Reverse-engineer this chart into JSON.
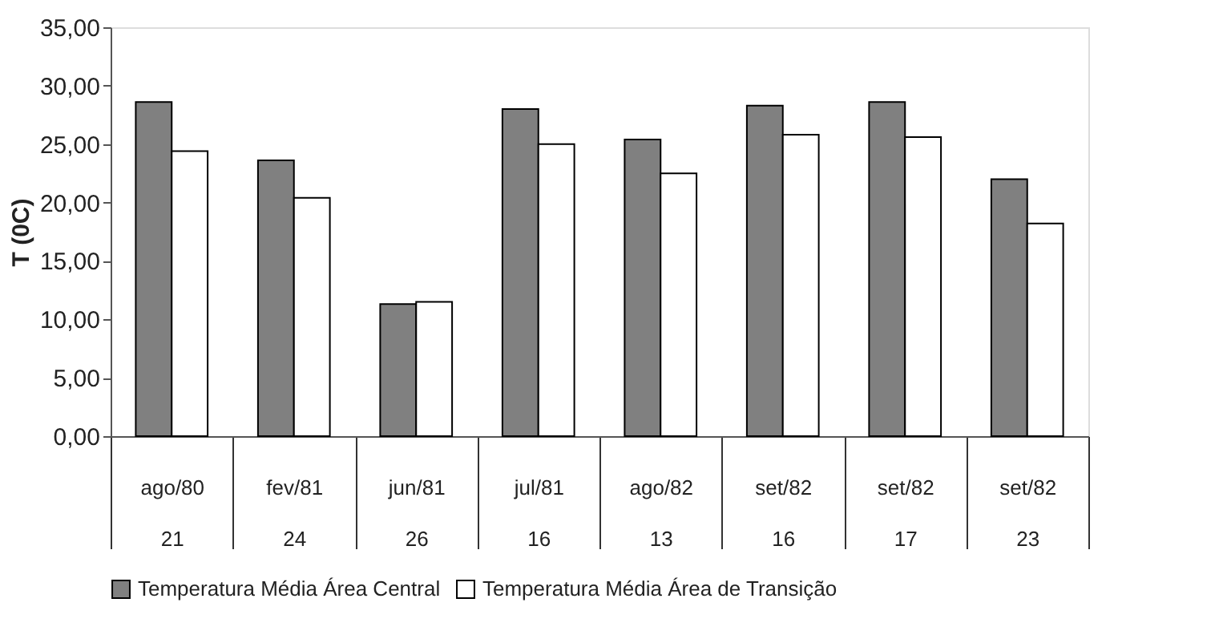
{
  "chart_data": {
    "type": "bar",
    "ylabel": "T (0C)",
    "categories": [
      "ago/80\n21",
      "fev/81\n24",
      "jun/81\n26",
      "jul/81\n16",
      "ago/82\n13",
      "set/82\n16",
      "set/82\n17",
      "set/82\n23"
    ],
    "series": [
      {
        "name": "Temperatura Média Área Central",
        "color": "#808080",
        "values": [
          28.6,
          23.6,
          11.3,
          28.0,
          25.4,
          28.3,
          28.6,
          22.0
        ]
      },
      {
        "name": "Temperatura Média Área de Transição",
        "color": "#ffffff",
        "values": [
          24.4,
          20.4,
          11.5,
          25.0,
          22.5,
          25.8,
          25.6,
          18.2
        ]
      }
    ],
    "ylim": [
      0,
      35
    ],
    "yticks": [
      {
        "value": 0,
        "label": "0,00"
      },
      {
        "value": 5,
        "label": "5,00"
      },
      {
        "value": 10,
        "label": "10,00"
      },
      {
        "value": 15,
        "label": "15,00"
      },
      {
        "value": 20,
        "label": "20,00"
      },
      {
        "value": 25,
        "label": "25,00"
      },
      {
        "value": 30,
        "label": "30,00"
      },
      {
        "value": 35,
        "label": "35,00"
      }
    ],
    "grid": false,
    "legend": "bottom"
  }
}
